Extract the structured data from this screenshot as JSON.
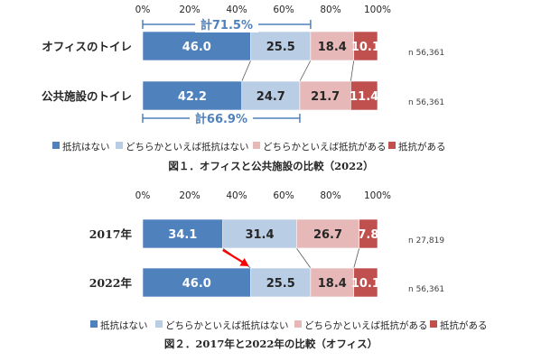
{
  "colors": {
    "seg1": "#4f81bd",
    "seg2": "#b9cde5",
    "seg3": "#e6b9b8",
    "seg4": "#c0504d",
    "bracket": "#4f81bd",
    "arrow": "#ff0000",
    "connector": "#595959"
  },
  "chart_data": [
    {
      "type": "bar",
      "orientation": "horizontal",
      "stacked": true,
      "percent": true,
      "categories": [
        "オフィスのトイレ",
        "公共施設のトイレ"
      ],
      "series": [
        {
          "name": "抵抗はない",
          "values": [
            46.0,
            42.2
          ]
        },
        {
          "name": "どちらかといえば抵抗はない",
          "values": [
            25.5,
            24.7
          ]
        },
        {
          "name": "どちらかといえば抵抗がある",
          "values": [
            18.4,
            21.7
          ]
        },
        {
          "name": "抵抗がある",
          "values": [
            10.1,
            11.4
          ]
        }
      ],
      "value_labels": [
        [
          "46.0",
          "25.5",
          "18.4",
          "10.1"
        ],
        [
          "42.2",
          "24.7",
          "21.7",
          "11.4"
        ]
      ],
      "n_labels": [
        "n 56,361",
        "n 56,361"
      ],
      "ticks": [
        "0%",
        "20%",
        "40%",
        "60%",
        "80%",
        "100%"
      ],
      "xlim": [
        0,
        100
      ],
      "bracket_labels": [
        {
          "text": "計71.5%",
          "value": 71.5
        },
        {
          "text": "計66.9%",
          "value": 66.9
        }
      ],
      "title": "図１．オフィスと公共施設の比較（2022）",
      "legend_position": "bottom"
    },
    {
      "type": "bar",
      "orientation": "horizontal",
      "stacked": true,
      "percent": true,
      "categories": [
        "2017年",
        "2022年"
      ],
      "series": [
        {
          "name": "抵抗はない",
          "values": [
            34.1,
            46.0
          ]
        },
        {
          "name": "どちらかといえば抵抗はない",
          "values": [
            31.4,
            25.5
          ]
        },
        {
          "name": "どちらかといえば抵抗がある",
          "values": [
            26.7,
            18.4
          ]
        },
        {
          "name": "抵抗がある",
          "values": [
            7.8,
            10.1
          ]
        }
      ],
      "value_labels": [
        [
          "34.1",
          "31.4",
          "26.7",
          "7.8"
        ],
        [
          "46.0",
          "25.5",
          "18.4",
          "10.1"
        ]
      ],
      "n_labels": [
        "n 27,819",
        "n 56,361"
      ],
      "ticks": [
        "0%",
        "20%",
        "40%",
        "60%",
        "80%",
        "100%"
      ],
      "xlim": [
        0,
        100
      ],
      "title": "図２．2017年と2022年の比較（オフィス）",
      "legend_position": "bottom"
    }
  ]
}
